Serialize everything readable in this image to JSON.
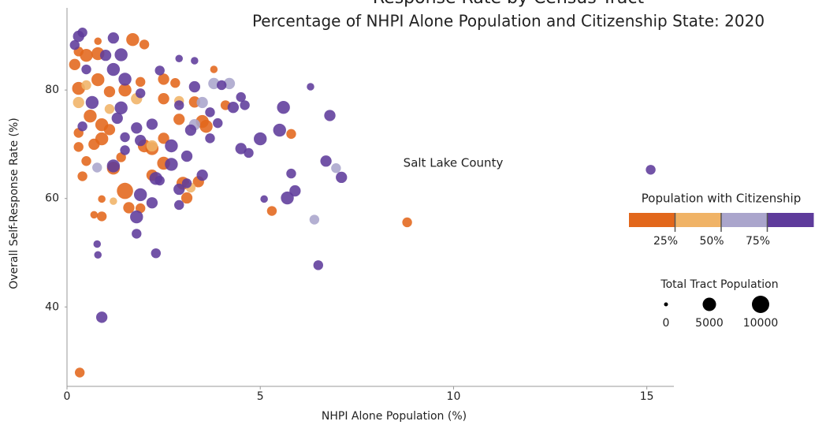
{
  "chart_data": {
    "type": "scatter",
    "title": "Response Rate by Census Tract",
    "subtitle": "Percentage of NHPI Alone Population and Citizenship State: 2020",
    "x_label": "NHPI Alone Population (%)",
    "y_label": "Overall Self-Response Rate (%)",
    "annotation": "Salt Lake County",
    "xlim": [
      0,
      15.7
    ],
    "xticks": [
      0,
      5,
      10,
      15
    ],
    "ylim": [
      25.5,
      95
    ],
    "yticks": [
      40,
      60,
      80
    ],
    "series": [
      {
        "color": "#e2671b",
        "x": [
          0.33,
          8.8,
          5.3,
          3.1,
          3.0,
          3.4,
          1.5,
          1.6,
          0.9,
          0.7,
          0.9,
          1.9,
          2.2,
          2.5,
          1.2,
          0.4,
          0.5,
          0.3,
          1.4,
          2.0,
          2.2,
          2.5,
          2.9,
          3.5,
          3.6,
          0.9,
          0.7,
          0.9,
          0.6,
          0.3,
          1.1,
          0.3,
          0.8,
          0.2,
          0.5,
          0.8,
          0.3,
          1.7,
          2.0,
          0.8,
          2.5,
          1.9,
          1.5,
          1.1,
          2.5,
          2.8,
          3.3,
          3.8,
          4.1,
          5.8
        ],
        "values": [
          27.9,
          55.6,
          57.7,
          60.1,
          62.8,
          63.1,
          61.4,
          58.3,
          59.9,
          57.0,
          56.7,
          58.2,
          64.3,
          66.5,
          65.6,
          64.1,
          66.9,
          69.5,
          67.6,
          69.7,
          69.2,
          71.1,
          74.6,
          74.2,
          73.3,
          71.0,
          70.0,
          73.6,
          75.2,
          72.1,
          72.7,
          80.3,
          81.9,
          84.7,
          86.4,
          86.7,
          87.1,
          89.3,
          88.4,
          89.0,
          82.0,
          81.5,
          80.0,
          79.7,
          78.4,
          81.3,
          77.8,
          83.8,
          77.2,
          71.9
        ],
        "sizes": [
          1900,
          1900,
          1900,
          3000,
          4500,
          3000,
          8400,
          3000,
          700,
          700,
          1900,
          1900,
          3000,
          4500,
          4500,
          1900,
          1900,
          1900,
          1900,
          4500,
          4500,
          3000,
          3000,
          4500,
          4500,
          4500,
          3000,
          4500,
          4500,
          1900,
          3000,
          4500,
          4500,
          3000,
          4500,
          4500,
          1900,
          4500,
          1900,
          700,
          3000,
          1900,
          4500,
          3000,
          3000,
          1900,
          3000,
          700,
          1900,
          1900
        ]
      },
      {
        "color": "#f0b366",
        "x": [
          1.2,
          3.2,
          0.3,
          0.5,
          2.2,
          1.8,
          1.1,
          2.9
        ],
        "values": [
          59.5,
          62.0,
          77.7,
          80.9,
          69.7,
          78.4,
          76.5,
          78.0
        ],
        "sizes": [
          700,
          1900,
          3000,
          1900,
          3000,
          3000,
          1900,
          1900
        ]
      },
      {
        "color": "#aaa5cc",
        "x": [
          6.4,
          6.96,
          0.78,
          3.3,
          3.5,
          3.8,
          4.2
        ],
        "values": [
          56.1,
          65.6,
          65.7,
          73.6,
          77.7,
          81.2,
          81.2
        ],
        "sizes": [
          1900,
          1900,
          1900,
          3000,
          3000,
          3000,
          3000
        ]
      },
      {
        "color": "#5e3b9b",
        "x": [
          15.1,
          6.5,
          0.9,
          0.8,
          0.78,
          2.3,
          1.8,
          2.3,
          1.8,
          2.2,
          1.9,
          2.9,
          2.4,
          2.9,
          3.1,
          3.1,
          3.5,
          3.2,
          2.7,
          3.7,
          3.9,
          2.9,
          3.3,
          3.7,
          4.5,
          4.6,
          4.3,
          4.0,
          4.5,
          4.7,
          5.0,
          5.5,
          5.6,
          6.3,
          6.8,
          6.7,
          7.1,
          5.8,
          5.9,
          5.7,
          5.1,
          3.3,
          2.9,
          2.4,
          1.9,
          1.4,
          1.5,
          1.2,
          1.4,
          1.2,
          1.0,
          0.65,
          0.5,
          0.3,
          0.4,
          0.2,
          0.4,
          1.5,
          1.8,
          1.9,
          2.2,
          1.5,
          1.2,
          2.7,
          1.3
        ],
        "values": [
          65.3,
          47.7,
          38.1,
          49.6,
          51.6,
          63.7,
          53.5,
          49.9,
          56.6,
          59.2,
          60.7,
          58.8,
          63.3,
          61.7,
          67.8,
          62.8,
          64.3,
          72.6,
          66.3,
          71.1,
          73.9,
          77.2,
          80.6,
          75.9,
          78.7,
          77.2,
          76.8,
          80.9,
          69.2,
          68.4,
          71.0,
          72.6,
          76.8,
          80.6,
          75.3,
          66.9,
          63.9,
          64.6,
          61.4,
          60.1,
          59.9,
          85.4,
          85.8,
          83.6,
          79.4,
          76.7,
          82.0,
          83.8,
          86.5,
          89.6,
          86.4,
          77.7,
          83.8,
          89.9,
          90.6,
          88.3,
          73.3,
          68.9,
          73.0,
          70.7,
          73.7,
          71.3,
          66.0,
          69.7,
          74.8
        ],
        "sizes": [
          1900,
          1900,
          3000,
          700,
          700,
          4500,
          1900,
          1900,
          4500,
          3000,
          4500,
          1900,
          1900,
          3000,
          3000,
          1900,
          3000,
          3000,
          4500,
          1900,
          1900,
          1900,
          3000,
          1900,
          1900,
          1900,
          3000,
          1900,
          3000,
          1900,
          4500,
          4500,
          4500,
          700,
          3000,
          3000,
          3000,
          1900,
          3000,
          4500,
          700,
          700,
          700,
          1900,
          1900,
          4500,
          4500,
          4500,
          4500,
          3000,
          3000,
          4500,
          1900,
          3000,
          1900,
          1900,
          1900,
          1900,
          3000,
          3000,
          3000,
          1900,
          4500,
          4500,
          3000
        ]
      }
    ],
    "color_legend": {
      "title": "Population with Citizenship",
      "colors": [
        "#e2671b",
        "#f0b366",
        "#aaa5cc",
        "#5e3b9b"
      ],
      "range": [
        0,
        100
      ],
      "ticks": [
        {
          "value": 25,
          "label": "25%"
        },
        {
          "value": 50,
          "label": "50%"
        },
        {
          "value": 75,
          "label": "75%"
        }
      ]
    },
    "size_legend": {
      "title": "Total Tract Population",
      "values": [
        0,
        5000,
        10000
      ]
    }
  }
}
